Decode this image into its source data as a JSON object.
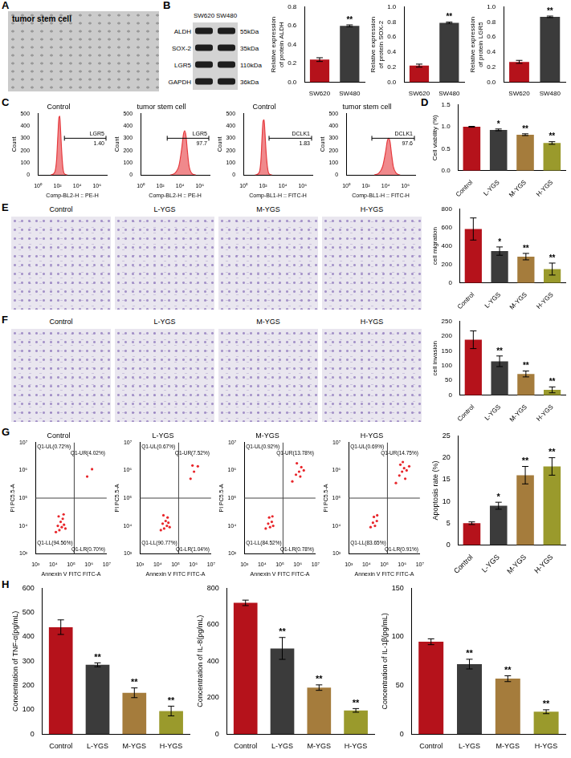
{
  "images": {
    "A": [
      "tumor stem cell"
    ],
    "E": [
      "Control",
      "L-YGS",
      "M-YGS",
      "H-YGS"
    ],
    "F": [
      "Control",
      "L-YGS",
      "M-YGS",
      "H-YGS"
    ]
  },
  "blot": {
    "panel": "B",
    "lanes": [
      "SW620",
      "SW480"
    ],
    "bands": [
      {
        "name": "ALDH",
        "size": "55kDa"
      },
      {
        "name": "SOX-2",
        "size": "35kDa"
      },
      {
        "name": "LGR5",
        "size": "110kDa"
      },
      {
        "name": "GAPDH",
        "size": "36kDa"
      }
    ]
  },
  "chart_data": [
    {
      "panel": "B",
      "type": "bar",
      "y_label": "Relative expression of protein ALDH",
      "categories": [
        "SW620",
        "SW480"
      ],
      "values": [
        0.24,
        0.6
      ],
      "errors": [
        0.02,
        0.01
      ],
      "significance": [
        null,
        "**"
      ],
      "colors": [
        "#b5121b",
        "#3b3b3b"
      ],
      "ylim": [
        0,
        0.8
      ],
      "yticks": [
        {
          "value": 0,
          "label": "0.0"
        },
        0.2,
        0.4,
        0.6,
        0.8
      ],
      "grid": false
    },
    {
      "panel": "B",
      "type": "bar",
      "y_label": "Relative expression of protein SOX-2",
      "categories": [
        "SW620",
        "SW480"
      ],
      "values": [
        0.22,
        0.79
      ],
      "errors": [
        0.02,
        0.01
      ],
      "significance": [
        null,
        "**"
      ],
      "colors": [
        "#b5121b",
        "#3b3b3b"
      ],
      "ylim": [
        0,
        1
      ],
      "yticks": [
        {
          "value": 0,
          "label": "0.0"
        },
        0.2,
        0.4,
        0.6,
        0.8,
        {
          "value": 1,
          "label": "1.0"
        }
      ],
      "grid": false
    },
    {
      "panel": "B",
      "type": "bar",
      "y_label": "Relative expression of protein LGR5",
      "categories": [
        "SW620",
        "SW480"
      ],
      "values": [
        0.27,
        0.87
      ],
      "errors": [
        0.02,
        0.01
      ],
      "significance": [
        null,
        "**"
      ],
      "colors": [
        "#b5121b",
        "#3b3b3b"
      ],
      "ylim": [
        0,
        1
      ],
      "yticks": [
        {
          "value": 0,
          "label": "0.0"
        },
        0.2,
        0.4,
        0.6,
        0.8,
        {
          "value": 1,
          "label": "1.0"
        }
      ],
      "grid": false
    },
    {
      "panel": "C",
      "type": "area",
      "title": "Control",
      "x_label": "Comp-BL2-H :: PE-H",
      "y_label": "Count",
      "log": "x",
      "x": [
        20,
        50,
        80,
        110,
        140,
        170,
        200,
        260,
        350,
        500,
        1000
      ],
      "values": [
        0,
        20,
        120,
        330,
        470,
        480,
        380,
        200,
        60,
        10,
        0
      ],
      "xlim": [
        1,
        10000000
      ],
      "xticks": [
        {
          "value": 1,
          "label": "10⁰"
        },
        {
          "value": 100,
          "label": "10²"
        },
        {
          "value": 10000,
          "label": "10⁴"
        },
        {
          "value": 1000000,
          "label": "10⁶"
        }
      ],
      "ylim": [
        0,
        500
      ],
      "yticks": [
        0,
        100,
        200,
        300,
        400,
        500
      ],
      "gate": {
        "name": "LGR5",
        "value": 1.4,
        "label": "1.40",
        "range": [
          500,
          10000000
        ]
      },
      "color": "#e63b3f",
      "grid": false
    },
    {
      "panel": "C",
      "type": "area",
      "title": "tumor stem cell",
      "x_label": "Comp-BL2-H :: PE-H",
      "y_label": "Count",
      "log": "x",
      "x": [
        1000,
        3000,
        8000,
        15000,
        22000,
        30000,
        40000,
        55000,
        80000,
        150000,
        400000
      ],
      "values": [
        0,
        15,
        80,
        220,
        330,
        360,
        320,
        200,
        80,
        15,
        0
      ],
      "xlim": [
        1,
        10000000
      ],
      "xticks": [
        {
          "value": 1,
          "label": "10⁰"
        },
        {
          "value": 100,
          "label": "10²"
        },
        {
          "value": 10000,
          "label": "10⁴"
        },
        {
          "value": 1000000,
          "label": "10⁶"
        }
      ],
      "ylim": [
        0,
        500
      ],
      "yticks": [
        0,
        100,
        200,
        300,
        400,
        500
      ],
      "gate": {
        "name": "LGR5",
        "value": 97.7,
        "label": "97.7",
        "range": [
          500,
          10000000
        ]
      },
      "color": "#e63b3f",
      "grid": false
    },
    {
      "panel": "C",
      "type": "area",
      "title": "Control",
      "x_label": "Comp-BL1-H :: FITC-H",
      "y_label": "Count",
      "log": "x",
      "x": [
        15,
        40,
        60,
        80,
        100,
        125,
        150,
        200,
        280,
        400,
        800
      ],
      "values": [
        0,
        20,
        120,
        320,
        440,
        450,
        360,
        190,
        60,
        10,
        0
      ],
      "xlim": [
        1,
        10000000
      ],
      "xticks": [
        {
          "value": 1,
          "label": "10⁰"
        },
        {
          "value": 100,
          "label": "10²"
        },
        {
          "value": 10000,
          "label": "10⁴"
        },
        {
          "value": 1000000,
          "label": "10⁶"
        }
      ],
      "ylim": [
        0,
        500
      ],
      "yticks": [
        0,
        100,
        200,
        300,
        400,
        500
      ],
      "gate": {
        "name": "DCLK1",
        "value": 1.83,
        "label": "1.83",
        "range": [
          400,
          10000000
        ]
      },
      "color": "#e63b3f",
      "grid": false
    },
    {
      "panel": "C",
      "type": "area",
      "title": "tumor stem cell",
      "x_label": "Comp-BL1-H :: FITC-H",
      "y_label": "Count",
      "log": "x",
      "x": [
        700,
        2000,
        5000,
        10000,
        15000,
        20000,
        28000,
        40000,
        60000,
        120000,
        300000
      ],
      "values": [
        0,
        15,
        70,
        190,
        280,
        300,
        270,
        170,
        70,
        15,
        0
      ],
      "xlim": [
        1,
        10000000
      ],
      "xticks": [
        {
          "value": 1,
          "label": "10⁰"
        },
        {
          "value": 100,
          "label": "10²"
        },
        {
          "value": 10000,
          "label": "10⁴"
        },
        {
          "value": 1000000,
          "label": "10⁶"
        }
      ],
      "ylim": [
        0,
        500
      ],
      "yticks": [
        0,
        100,
        200,
        300,
        400,
        500
      ],
      "gate": {
        "name": "DCLK1",
        "value": 97.6,
        "label": "97.6",
        "range": [
          400,
          10000000
        ]
      },
      "color": "#e63b3f",
      "grid": false
    },
    {
      "panel": "D",
      "type": "bar",
      "y_label": "Cell viability (%)",
      "categories": [
        "Control",
        "L-YGS",
        "M-YGS",
        "H-YGS"
      ],
      "values": [
        1.0,
        0.93,
        0.82,
        0.63
      ],
      "errors": [
        0.01,
        0.02,
        0.02,
        0.03
      ],
      "significance": [
        null,
        "*",
        "**",
        "**"
      ],
      "colors": [
        "#b5121b",
        "#3b3b3b",
        "#a57c3c",
        "#9a9a2c"
      ],
      "ylim": [
        0,
        1.5
      ],
      "yticks": [
        {
          "value": 0,
          "label": "0.0"
        },
        0.5,
        {
          "value": 1,
          "label": "1.0"
        },
        1.5
      ],
      "grid": false
    },
    {
      "panel": "E",
      "type": "bar",
      "y_label": "cell migration",
      "categories": [
        "Control",
        "L-YGS",
        "M-YGS",
        "H-YGS"
      ],
      "values": [
        585,
        345,
        285,
        150
      ],
      "errors": [
        120,
        45,
        35,
        65
      ],
      "significance": [
        null,
        "*",
        "**",
        "**"
      ],
      "colors": [
        "#b5121b",
        "#3b3b3b",
        "#a57c3c",
        "#9a9a2c"
      ],
      "ylim": [
        0,
        800
      ],
      "yticks": [
        0,
        200,
        400,
        600,
        800
      ],
      "grid": false
    },
    {
      "panel": "F",
      "type": "bar",
      "y_label": "cell invasion",
      "categories": [
        "Control",
        "L-YGS",
        "M-YGS",
        "H-YGS"
      ],
      "values": [
        188,
        115,
        72,
        18
      ],
      "errors": [
        30,
        18,
        10,
        10
      ],
      "significance": [
        null,
        "**",
        "**",
        "**"
      ],
      "colors": [
        "#b5121b",
        "#3b3b3b",
        "#a57c3c",
        "#9a9a2c"
      ],
      "ylim": [
        0,
        250
      ],
      "yticks": [
        0,
        50,
        100,
        150,
        200,
        250
      ],
      "grid": false
    },
    {
      "panel": "G",
      "type": "scatter",
      "title": "Control",
      "x_label": "Annexin V FITC FITC-A",
      "y_label": "PI PC5.5-A",
      "log": true,
      "x": [
        14000,
        18000,
        22000,
        26000,
        30000,
        34000,
        40000,
        48000,
        20000,
        38000,
        800000,
        1500000
      ],
      "values": [
        6000,
        10000,
        7000,
        14000,
        9000,
        18000,
        11000,
        8000,
        22000,
        26000,
        600000,
        1100000
      ],
      "xlim": [
        1000,
        10000000
      ],
      "xticks": [
        {
          "value": 1000,
          "label": "10³"
        },
        {
          "value": 10000,
          "label": "10⁴"
        },
        {
          "value": 100000,
          "label": "10⁵"
        },
        {
          "value": 1000000,
          "label": "10⁶"
        },
        {
          "value": 10000000,
          "label": "10⁷"
        }
      ],
      "ylim": [
        1000,
        10000000
      ],
      "yticks": [
        {
          "value": 1000,
          "label": "10³"
        },
        {
          "value": 10000,
          "label": "10⁴"
        },
        {
          "value": 100000,
          "label": "10⁵"
        },
        {
          "value": 1000000,
          "label": "10⁶"
        },
        {
          "value": 10000000,
          "label": "10⁷"
        }
      ],
      "gate": {
        "x": 150000,
        "y": 100000
      },
      "quadrants": {
        "UL": "Q1-UL(0.72%)",
        "UR": "Q1-UR(4.02%)",
        "LL": "Q1-LL(94.56%)",
        "LR": "Q1-LR(0.70%)"
      },
      "color": "#e8262b",
      "grid": false
    },
    {
      "panel": "G",
      "type": "scatter",
      "title": "L-YGS",
      "x_label": "Annexin V FITC FITC-A",
      "y_label": "PI PC5.5-A",
      "log": true,
      "x": [
        15000,
        19000,
        23000,
        28000,
        33000,
        40000,
        47000,
        21000,
        36000,
        700000,
        1100000,
        1800000,
        900000
      ],
      "values": [
        7000,
        12000,
        8000,
        15000,
        10000,
        13000,
        9000,
        24000,
        20000,
        500000,
        900000,
        1400000,
        1500000
      ],
      "xlim": [
        1000,
        10000000
      ],
      "xticks": [
        {
          "value": 1000,
          "label": "10³"
        },
        {
          "value": 10000,
          "label": "10⁴"
        },
        {
          "value": 100000,
          "label": "10⁵"
        },
        {
          "value": 1000000,
          "label": "10⁶"
        },
        {
          "value": 10000000,
          "label": "10⁷"
        }
      ],
      "ylim": [
        1000,
        10000000
      ],
      "yticks": [
        {
          "value": 1000,
          "label": "10³"
        },
        {
          "value": 10000,
          "label": "10⁴"
        },
        {
          "value": 100000,
          "label": "10⁵"
        },
        {
          "value": 1000000,
          "label": "10⁶"
        },
        {
          "value": 10000000,
          "label": "10⁷"
        }
      ],
      "gate": {
        "x": 150000,
        "y": 100000
      },
      "quadrants": {
        "UL": "Q1-UL(0.67%)",
        "UR": "Q1-UR(7.52%)",
        "LL": "Q1-LL(90.77%)",
        "LR": "Q1-LR(1.04%)"
      },
      "color": "#e8262b",
      "grid": false
    },
    {
      "panel": "G",
      "type": "scatter",
      "title": "M-YGS",
      "x_label": "Annexin V FITC FITC-A",
      "y_label": "PI PC5.5-A",
      "log": true,
      "x": [
        16000,
        22000,
        28000,
        35000,
        42000,
        25000,
        38000,
        500000,
        800000,
        1200000,
        1600000,
        2200000,
        900000,
        1400000
      ],
      "values": [
        8000,
        12000,
        9000,
        14000,
        10000,
        20000,
        22000,
        400000,
        700000,
        900000,
        1300000,
        1000000,
        1800000,
        600000
      ],
      "xlim": [
        1000,
        10000000
      ],
      "xticks": [
        {
          "value": 1000,
          "label": "10³"
        },
        {
          "value": 10000,
          "label": "10⁴"
        },
        {
          "value": 100000,
          "label": "10⁵"
        },
        {
          "value": 1000000,
          "label": "10⁶"
        },
        {
          "value": 10000000,
          "label": "10⁷"
        }
      ],
      "ylim": [
        1000,
        10000000
      ],
      "yticks": [
        {
          "value": 1000,
          "label": "10³"
        },
        {
          "value": 10000,
          "label": "10⁴"
        },
        {
          "value": 100000,
          "label": "10⁵"
        },
        {
          "value": 1000000,
          "label": "10⁶"
        },
        {
          "value": 10000000,
          "label": "10⁷"
        }
      ],
      "gate": {
        "x": 150000,
        "y": 100000
      },
      "quadrants": {
        "UL": "Q1-UL(0.92%)",
        "UR": "Q1-UR(13.78%)",
        "LL": "Q1-LL(84.52%)",
        "LR": "Q1-LR(0.78%)"
      },
      "color": "#e8262b",
      "grid": false
    },
    {
      "panel": "G",
      "type": "scatter",
      "title": "H-YGS",
      "x_label": "Annexin V FITC FITC-A",
      "y_label": "PI PC5.5-A",
      "log": true,
      "x": [
        17000,
        23000,
        30000,
        38000,
        26000,
        40000,
        450000,
        700000,
        1000000,
        1300000,
        1800000,
        2500000,
        800000,
        1500000,
        1100000
      ],
      "values": [
        9000,
        13000,
        10000,
        15000,
        21000,
        24000,
        350000,
        650000,
        900000,
        1200000,
        1000000,
        1400000,
        1600000,
        500000,
        2000000
      ],
      "xlim": [
        1000,
        10000000
      ],
      "xticks": [
        {
          "value": 1000,
          "label": "10³"
        },
        {
          "value": 10000,
          "label": "10⁴"
        },
        {
          "value": 100000,
          "label": "10⁵"
        },
        {
          "value": 1000000,
          "label": "10⁶"
        },
        {
          "value": 10000000,
          "label": "10⁷"
        }
      ],
      "ylim": [
        1000,
        10000000
      ],
      "yticks": [
        {
          "value": 1000,
          "label": "10³"
        },
        {
          "value": 10000,
          "label": "10⁴"
        },
        {
          "value": 100000,
          "label": "10⁵"
        },
        {
          "value": 1000000,
          "label": "10⁶"
        },
        {
          "value": 10000000,
          "label": "10⁷"
        }
      ],
      "gate": {
        "x": 150000,
        "y": 100000
      },
      "quadrants": {
        "UL": "Q1-UL(0.69%)",
        "UR": "Q1-UR(14.75%)",
        "LL": "Q1-LL(83.65%)",
        "LR": "Q1-LR(0.91%)"
      },
      "color": "#e8262b",
      "grid": false
    },
    {
      "panel": "G",
      "type": "bar",
      "y_label": "Apoptosis rate (%)",
      "categories": [
        "Control",
        "L-YGS",
        "M-YGS",
        "H-YGS"
      ],
      "values": [
        5,
        9,
        16,
        18
      ],
      "errors": [
        0.3,
        0.8,
        2,
        2
      ],
      "significance": [
        null,
        "*",
        "**",
        "**"
      ],
      "colors": [
        "#b5121b",
        "#3b3b3b",
        "#a57c3c",
        "#9a9a2c"
      ],
      "ylim": [
        0,
        25
      ],
      "yticks": [
        0,
        5,
        10,
        15,
        20,
        25
      ],
      "grid": false
    },
    {
      "panel": "H",
      "type": "bar",
      "y_label": "Concentration of TNF-α(pg/mL)",
      "categories": [
        "Control",
        "L-YGS",
        "M-YGS",
        "H-YGS"
      ],
      "values": [
        440,
        285,
        170,
        95
      ],
      "errors": [
        30,
        8,
        20,
        20
      ],
      "significance": [
        null,
        "**",
        "**",
        "**"
      ],
      "colors": [
        "#b5121b",
        "#3b3b3b",
        "#a57c3c",
        "#9a9a2c"
      ],
      "ylim": [
        0,
        600
      ],
      "yticks": [
        0,
        100,
        200,
        300,
        400,
        500,
        600
      ],
      "grid": false
    },
    {
      "panel": "H",
      "type": "bar",
      "y_label": "Concentration of IL-8(pg/mL)",
      "categories": [
        "Control",
        "L-YGS",
        "M-YGS",
        "H-YGS"
      ],
      "values": [
        720,
        470,
        255,
        130
      ],
      "errors": [
        15,
        60,
        15,
        10
      ],
      "significance": [
        null,
        "**",
        "**",
        "**"
      ],
      "colors": [
        "#b5121b",
        "#3b3b3b",
        "#a57c3c",
        "#9a9a2c"
      ],
      "ylim": [
        0,
        800
      ],
      "yticks": [
        0,
        200,
        400,
        600,
        800
      ],
      "grid": false
    },
    {
      "panel": "H",
      "type": "bar",
      "y_label": "Concentration of IL-1β(pg/mL)",
      "categories": [
        "Control",
        "L-YGS",
        "M-YGS",
        "H-YGS"
      ],
      "values": [
        95,
        72,
        57,
        23
      ],
      "errors": [
        3,
        5,
        3,
        2
      ],
      "significance": [
        null,
        "**",
        "**",
        "**"
      ],
      "colors": [
        "#b5121b",
        "#3b3b3b",
        "#a57c3c",
        "#9a9a2c"
      ],
      "ylim": [
        0,
        150
      ],
      "yticks": [
        0,
        50,
        100,
        150
      ],
      "grid": false
    }
  ]
}
